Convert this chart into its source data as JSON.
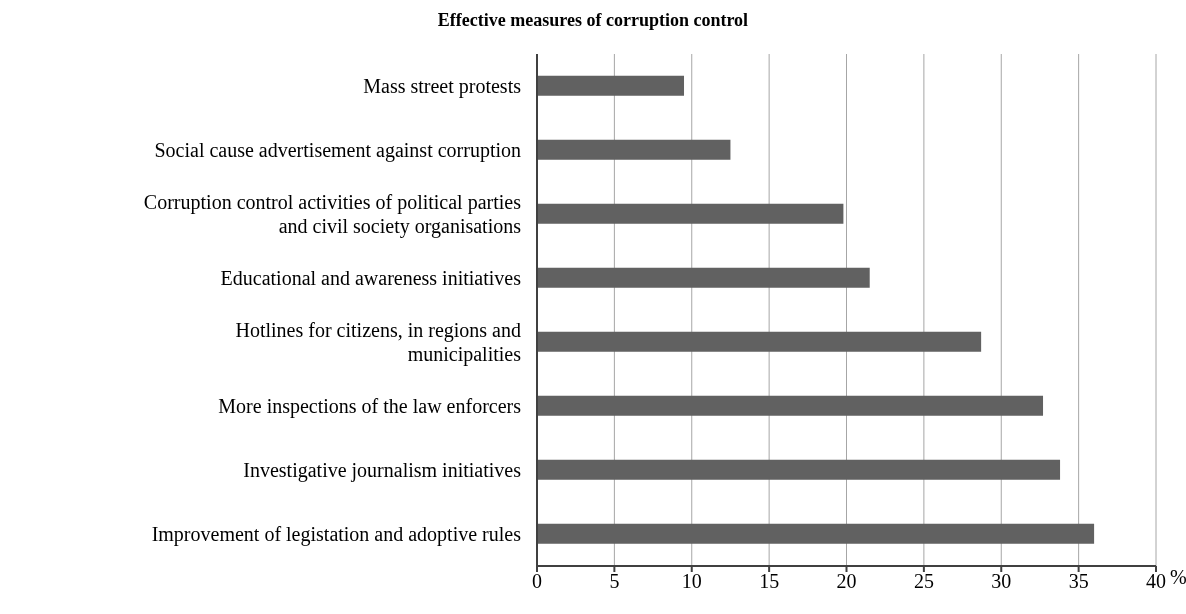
{
  "chart_data": {
    "type": "bar",
    "orientation": "horizontal",
    "title": "Effective measures of corruption control",
    "xlabel": "%",
    "categories": [
      "Mass street protests",
      "Social cause advertisement against corruption",
      "Corruption control activities of political parties\nand civil society organisations",
      "Educational and awareness initiatives",
      "Hotlines for citizens, in regions and\nmunicipalities",
      "More inspections of the law enforcers",
      "Investigative journalism initiatives",
      "Improvement of legistation and adoptive rules"
    ],
    "values": [
      9.5,
      12.5,
      19.8,
      21.5,
      28.7,
      32.7,
      33.8,
      36.0
    ],
    "color": "#616161",
    "xlim": [
      0,
      40
    ],
    "xticks": [
      0,
      5,
      10,
      15,
      20,
      25,
      30,
      35,
      40
    ],
    "grid": "x"
  }
}
